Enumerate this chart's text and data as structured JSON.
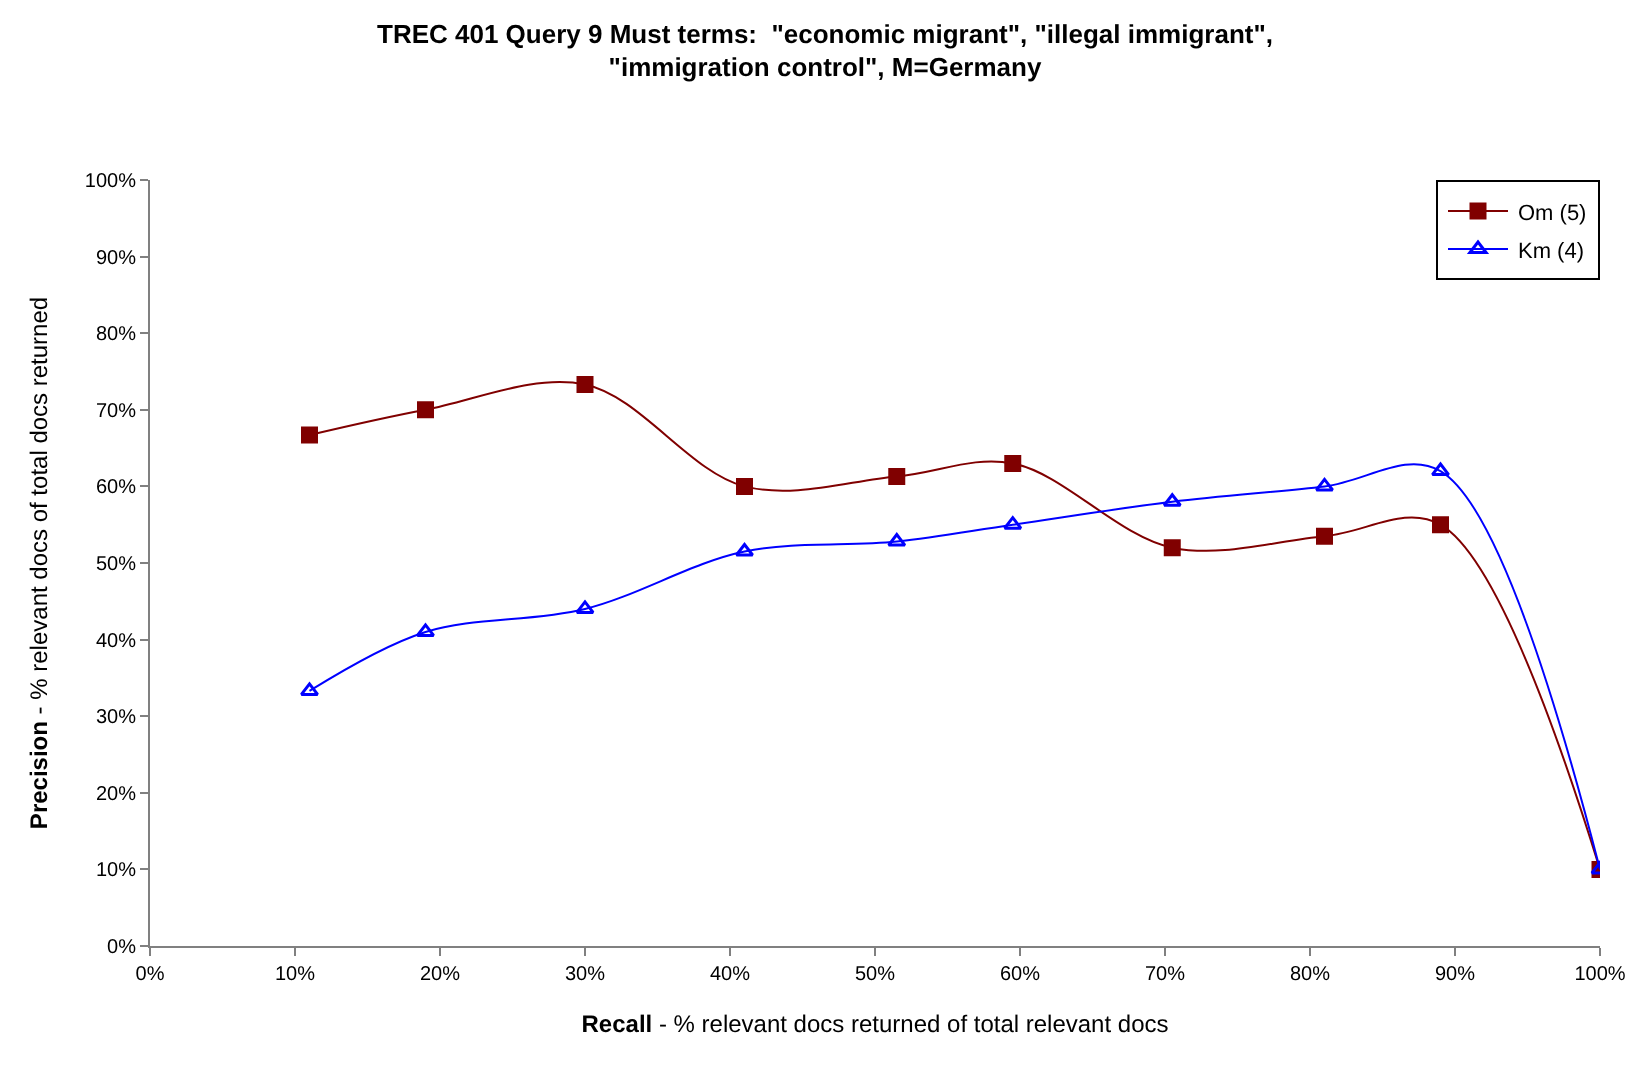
{
  "chart_data": {
    "type": "line",
    "title": "TREC 401 Query 9 Must terms:  \"economic migrant\", \"illegal immigrant\", \"immigration control\", M=Germany",
    "xlabel": "Recall - % relevant docs returned of total relevant docs",
    "ylabel": "Precision - % relevant docs of total docs returned",
    "x": [
      11,
      19,
      30,
      41,
      51.5,
      59.5,
      70.5,
      81,
      89,
      100
    ],
    "series": [
      {
        "name": "Om (5)",
        "color": "#800000",
        "marker": "square",
        "values": [
          66.7,
          70,
          73.3,
          60,
          61.3,
          63,
          52,
          53.5,
          55,
          10
        ]
      },
      {
        "name": "Km (4)",
        "color": "#0000ff",
        "marker": "triangle",
        "values": [
          33.3,
          41,
          44,
          51.5,
          52.8,
          55,
          58,
          60,
          62,
          10
        ]
      }
    ],
    "xlim": [
      0,
      100
    ],
    "xticks": [
      {
        "value": 0,
        "label": "0%"
      },
      {
        "value": 10,
        "label": "10%"
      },
      {
        "value": 20,
        "label": "20%"
      },
      {
        "value": 30,
        "label": "30%"
      },
      {
        "value": 40,
        "label": "40%"
      },
      {
        "value": 50,
        "label": "50%"
      },
      {
        "value": 60,
        "label": "60%"
      },
      {
        "value": 70,
        "label": "70%"
      },
      {
        "value": 80,
        "label": "80%"
      },
      {
        "value": 90,
        "label": "90%"
      },
      {
        "value": 100,
        "label": "100%"
      }
    ],
    "ylim": [
      0,
      100
    ],
    "yticks": [
      {
        "value": 0,
        "label": "0%"
      },
      {
        "value": 10,
        "label": "10%"
      },
      {
        "value": 20,
        "label": "20%"
      },
      {
        "value": 30,
        "label": "30%"
      },
      {
        "value": 40,
        "label": "40%"
      },
      {
        "value": 50,
        "label": "50%"
      },
      {
        "value": 60,
        "label": "60%"
      },
      {
        "value": 70,
        "label": "70%"
      },
      {
        "value": 80,
        "label": "80%"
      },
      {
        "value": 90,
        "label": "90%"
      },
      {
        "value": 100,
        "label": "100%"
      }
    ],
    "legend": "top right",
    "line_style": "solid"
  }
}
